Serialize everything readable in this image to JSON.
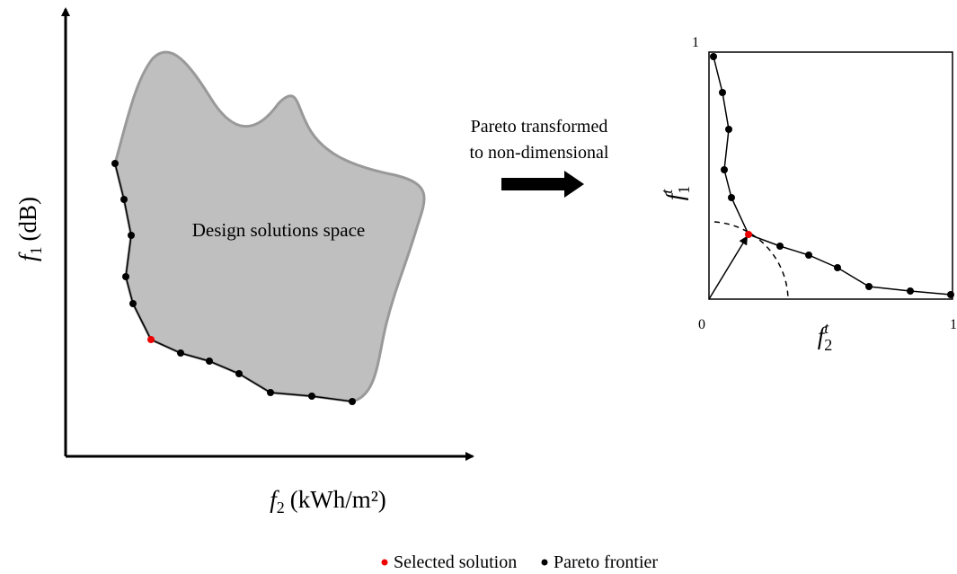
{
  "left_plot": {
    "region_label": "Design solutions space",
    "y_axis_label": {
      "symbol": "f",
      "subscript": "1",
      "unit": "(dB)"
    },
    "x_axis_label": {
      "symbol": "f",
      "subscript": "2",
      "unit": "(kWh/m²)"
    }
  },
  "transform_label": [
    "Pareto transformed",
    "to non-dimensional"
  ],
  "right_plot": {
    "y_max_label": "1",
    "origin_label": "0",
    "x_max_label": "1",
    "y_axis_label": {
      "symbol": "f",
      "subscript": "1",
      "superscript": "t"
    },
    "x_axis_label": {
      "symbol": "f",
      "subscript": "2",
      "superscript": "t"
    }
  },
  "legend": [
    "Selected solution",
    "Pareto frontier"
  ]
}
